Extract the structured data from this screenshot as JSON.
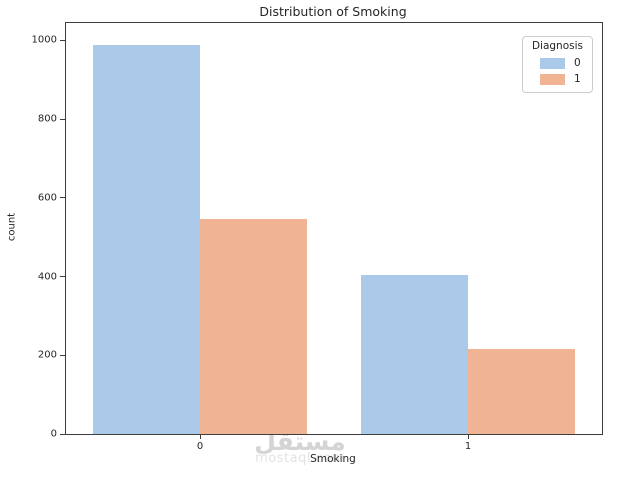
{
  "chart_data": {
    "type": "bar",
    "title": "Distribution of Smoking",
    "xlabel": "Smoking",
    "ylabel": "count",
    "categories": [
      "0",
      "1"
    ],
    "series": [
      {
        "name": "0",
        "color": "#abc9e8",
        "values": [
          988,
          405
        ]
      },
      {
        "name": "1",
        "color": "#f0b494",
        "values": [
          545,
          217
        ]
      }
    ],
    "yticks": [
      0,
      200,
      400,
      600,
      800,
      1000
    ],
    "ylim": [
      0,
      1044
    ],
    "xlim": [
      -0.5,
      1.5
    ],
    "group_width_units": 0.8,
    "grid": false,
    "legend": {
      "title": "Diagnosis",
      "position": "upper right"
    }
  },
  "watermark": {
    "arabic": "مستقل",
    "latin": "mostaql.com"
  }
}
